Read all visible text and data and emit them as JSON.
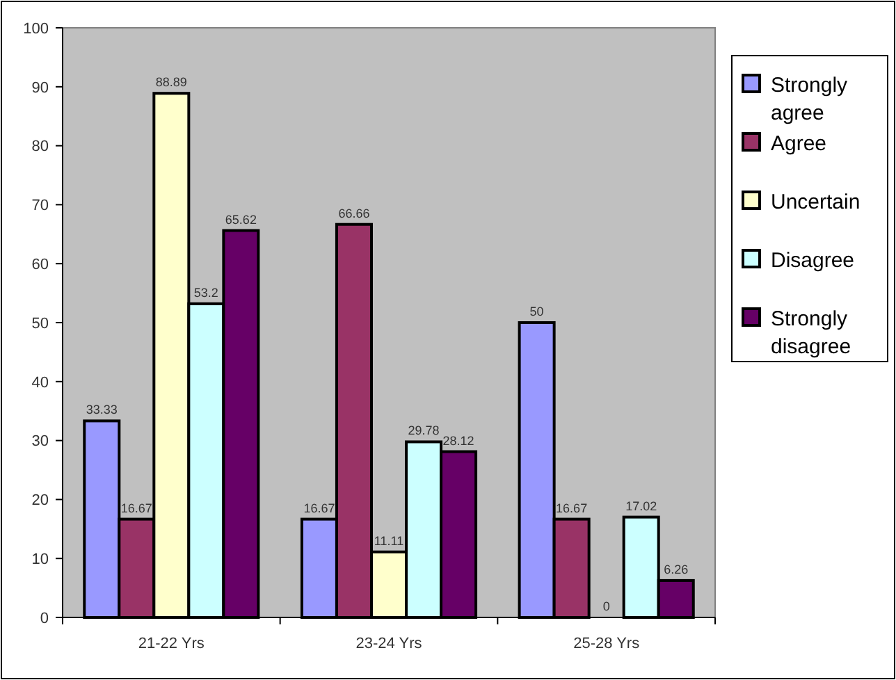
{
  "chart_data": {
    "type": "bar",
    "categories": [
      "21-22 Yrs",
      "23-24 Yrs",
      "25-28 Yrs"
    ],
    "series": [
      {
        "name": "Strongly agree",
        "color": "#9999ff",
        "values": [
          33.33,
          16.67,
          50
        ]
      },
      {
        "name": "Agree",
        "color": "#993366",
        "values": [
          16.67,
          66.66,
          16.67
        ]
      },
      {
        "name": "Uncertain",
        "color": "#ffffcc",
        "values": [
          88.89,
          11.11,
          0
        ]
      },
      {
        "name": "Disagree",
        "color": "#ccffff",
        "values": [
          53.2,
          29.78,
          17.02
        ]
      },
      {
        "name": "Strongly disagree",
        "color": "#660066",
        "values": [
          65.62,
          28.12,
          6.26
        ]
      }
    ],
    "ylim": [
      0,
      100
    ],
    "yticks": [
      0,
      10,
      20,
      30,
      40,
      50,
      60,
      70,
      80,
      90,
      100
    ],
    "grid": false,
    "legend": "right",
    "data_labels": true
  }
}
